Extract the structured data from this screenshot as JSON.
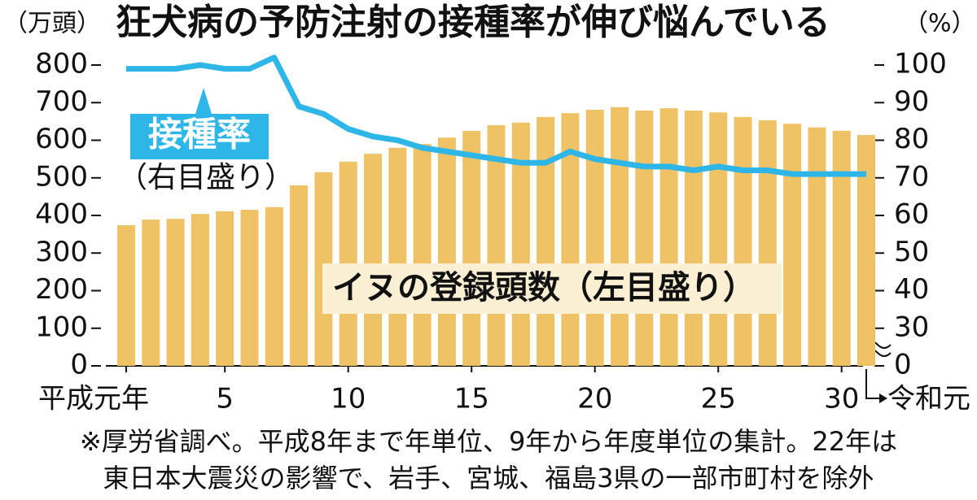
{
  "chart_data": {
    "type": "bar",
    "title": "狂犬病の予防注射の接種率が伸び悩んでいる",
    "ylabel": "（万頭）",
    "y2label": "（%）",
    "categories": [
      "平成元年",
      null,
      null,
      null,
      "5",
      null,
      null,
      null,
      null,
      "10",
      null,
      null,
      null,
      null,
      "15",
      null,
      null,
      null,
      null,
      "20",
      null,
      null,
      null,
      null,
      "25",
      null,
      null,
      null,
      null,
      "30",
      "令和元"
    ],
    "series": [
      {
        "name": "イヌの登録頭数",
        "scale_note": "（左目盛り）",
        "type": "bar",
        "color": "#efc266",
        "values": [
          374,
          389,
          391,
          404,
          411,
          415,
          422,
          480,
          515,
          543,
          564,
          580,
          590,
          607,
          625,
          640,
          647,
          662,
          672,
          681,
          688,
          679,
          685,
          679,
          674,
          662,
          653,
          644,
          634,
          625,
          614
        ]
      },
      {
        "name": "接種率",
        "scale_note": "（右目盛り）",
        "type": "line",
        "axis": "y2",
        "color": "#2fb6e8",
        "values": [
          99,
          99,
          99,
          100,
          99,
          99,
          102,
          89,
          87,
          83,
          81,
          80,
          78,
          77,
          76,
          75,
          74,
          74,
          77,
          75,
          74,
          73,
          73,
          72,
          73,
          72,
          72,
          71,
          71,
          71,
          71
        ]
      }
    ],
    "ylim": [
      0,
      800
    ],
    "yticks": [
      0,
      100,
      200,
      300,
      400,
      500,
      600,
      700,
      800
    ],
    "y2lim": [
      20,
      100
    ],
    "y2ticks": [
      0,
      30,
      40,
      50,
      60,
      70,
      80,
      90,
      100
    ],
    "y2_break": true,
    "footnote": [
      "※厚労省調べ。平成8年まで年単位、9年から年度単位の集計。22年は",
      "東日本大震災の影響で、岩手、宮城、福島3県の一部市町村を除外"
    ]
  }
}
